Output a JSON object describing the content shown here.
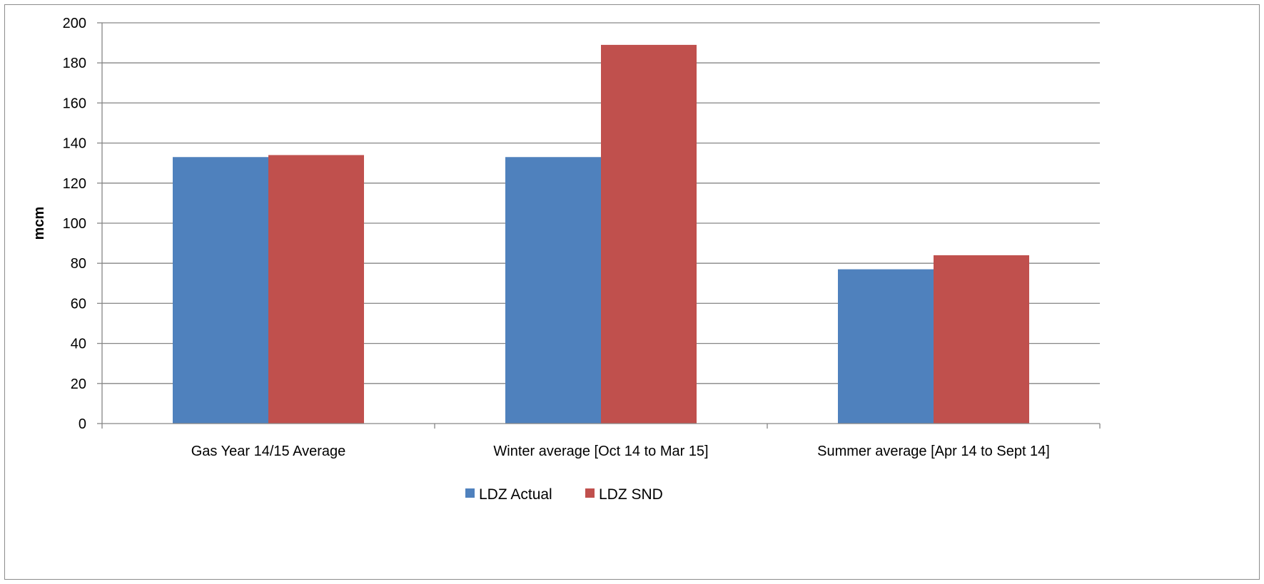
{
  "chart_data": {
    "type": "bar",
    "title": "",
    "xlabel": "",
    "ylabel": "mcm",
    "ylim": [
      0,
      200
    ],
    "yticks": [
      0,
      20,
      40,
      60,
      80,
      100,
      120,
      140,
      160,
      180,
      200
    ],
    "grid": true,
    "legend_position": "bottom",
    "categories": [
      "Gas Year 14/15 Average",
      "Winter average [Oct 14 to Mar 15]",
      "Summer average [Apr 14 to Sept 14]"
    ],
    "series": [
      {
        "name": "LDZ Actual",
        "color": "#4F81BD",
        "values": [
          133,
          133,
          77
        ]
      },
      {
        "name": "LDZ SND",
        "color": "#C0504D",
        "values": [
          134,
          189,
          84
        ]
      }
    ]
  }
}
